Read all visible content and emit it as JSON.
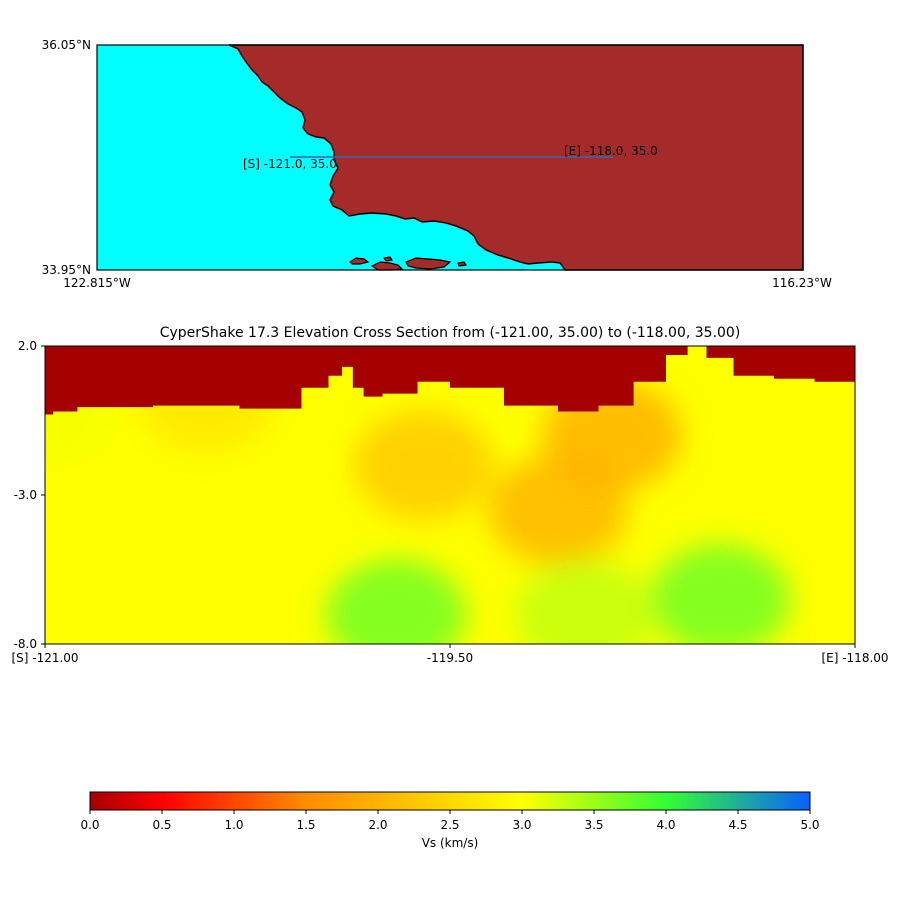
{
  "map": {
    "corner_labels": {
      "top_left": "36.05°N",
      "bottom_left": "33.95°N",
      "bottom_left_lon": "122.815°W",
      "bottom_right_lon": "116.23°W"
    },
    "start_label": "[S] -121.0, 35.0",
    "end_label": "[E] -118.0, 35.0",
    "colors": {
      "ocean": "#00ffff",
      "land": "#a52a2a",
      "profile_line": "#3b66b5"
    }
  },
  "chart_data": {
    "type": "heatmap",
    "title": "CyperShake 17.3 Elevation Cross Section from (-121.00, 35.00) to (-118.00, 35.00)",
    "xlabel": "",
    "ylabel": "",
    "xlim": [
      -121.0,
      -118.0
    ],
    "ylim": [
      -8.0,
      2.0
    ],
    "y_ticks": [
      "2.0",
      "-3.0",
      "-8.0"
    ],
    "x_ticks": [
      "[S] -121.00",
      "-119.50",
      "[E] -118.00"
    ],
    "surface_elevation_km": {
      "lon": [
        -121.0,
        -120.97,
        -120.88,
        -120.6,
        -120.28,
        -120.05,
        -119.95,
        -119.9,
        -119.86,
        -119.82,
        -119.75,
        -119.62,
        -119.5,
        -119.3,
        -119.1,
        -118.95,
        -118.82,
        -118.7,
        -118.62,
        -118.55,
        -118.45,
        -118.3,
        -118.15,
        -118.0
      ],
      "elev": [
        -0.3,
        -0.2,
        -0.05,
        0.0,
        -0.1,
        0.6,
        1.0,
        1.3,
        0.6,
        0.3,
        0.4,
        0.8,
        0.6,
        0.0,
        -0.2,
        0.0,
        0.8,
        1.7,
        2.0,
        1.6,
        1.0,
        0.9,
        0.8,
        0.7
      ]
    },
    "vs_anomalies_km_s": [
      {
        "lon": -121.0,
        "depth": 0.0,
        "vs": 3.05
      },
      {
        "lon": -120.0,
        "depth": -3.0,
        "vs": 3.0
      },
      {
        "lon": -119.6,
        "depth": -2.0,
        "vs": 2.3
      },
      {
        "lon": -119.1,
        "depth": -3.5,
        "vs": 2.05
      },
      {
        "lon": -118.9,
        "depth": -1.0,
        "vs": 2.0
      },
      {
        "lon": -120.4,
        "depth": 0.3,
        "vs": 2.7
      },
      {
        "lon": -119.7,
        "depth": -7.0,
        "vs": 3.7
      },
      {
        "lon": -118.5,
        "depth": -6.5,
        "vs": 3.7
      },
      {
        "lon": -119.0,
        "depth": -7.0,
        "vs": 3.3
      }
    ],
    "colorbar": {
      "label": "Vs (km/s)",
      "range": [
        0.0,
        5.0
      ],
      "ticks": [
        "0.0",
        "0.5",
        "1.0",
        "1.5",
        "2.0",
        "2.5",
        "3.0",
        "3.5",
        "4.0",
        "4.5",
        "5.0"
      ],
      "air_color": "#a50000",
      "colors": [
        "#a50000",
        "#ff0000",
        "#ff8c00",
        "#ffff00",
        "#33ff33",
        "#0a5fff"
      ]
    }
  }
}
